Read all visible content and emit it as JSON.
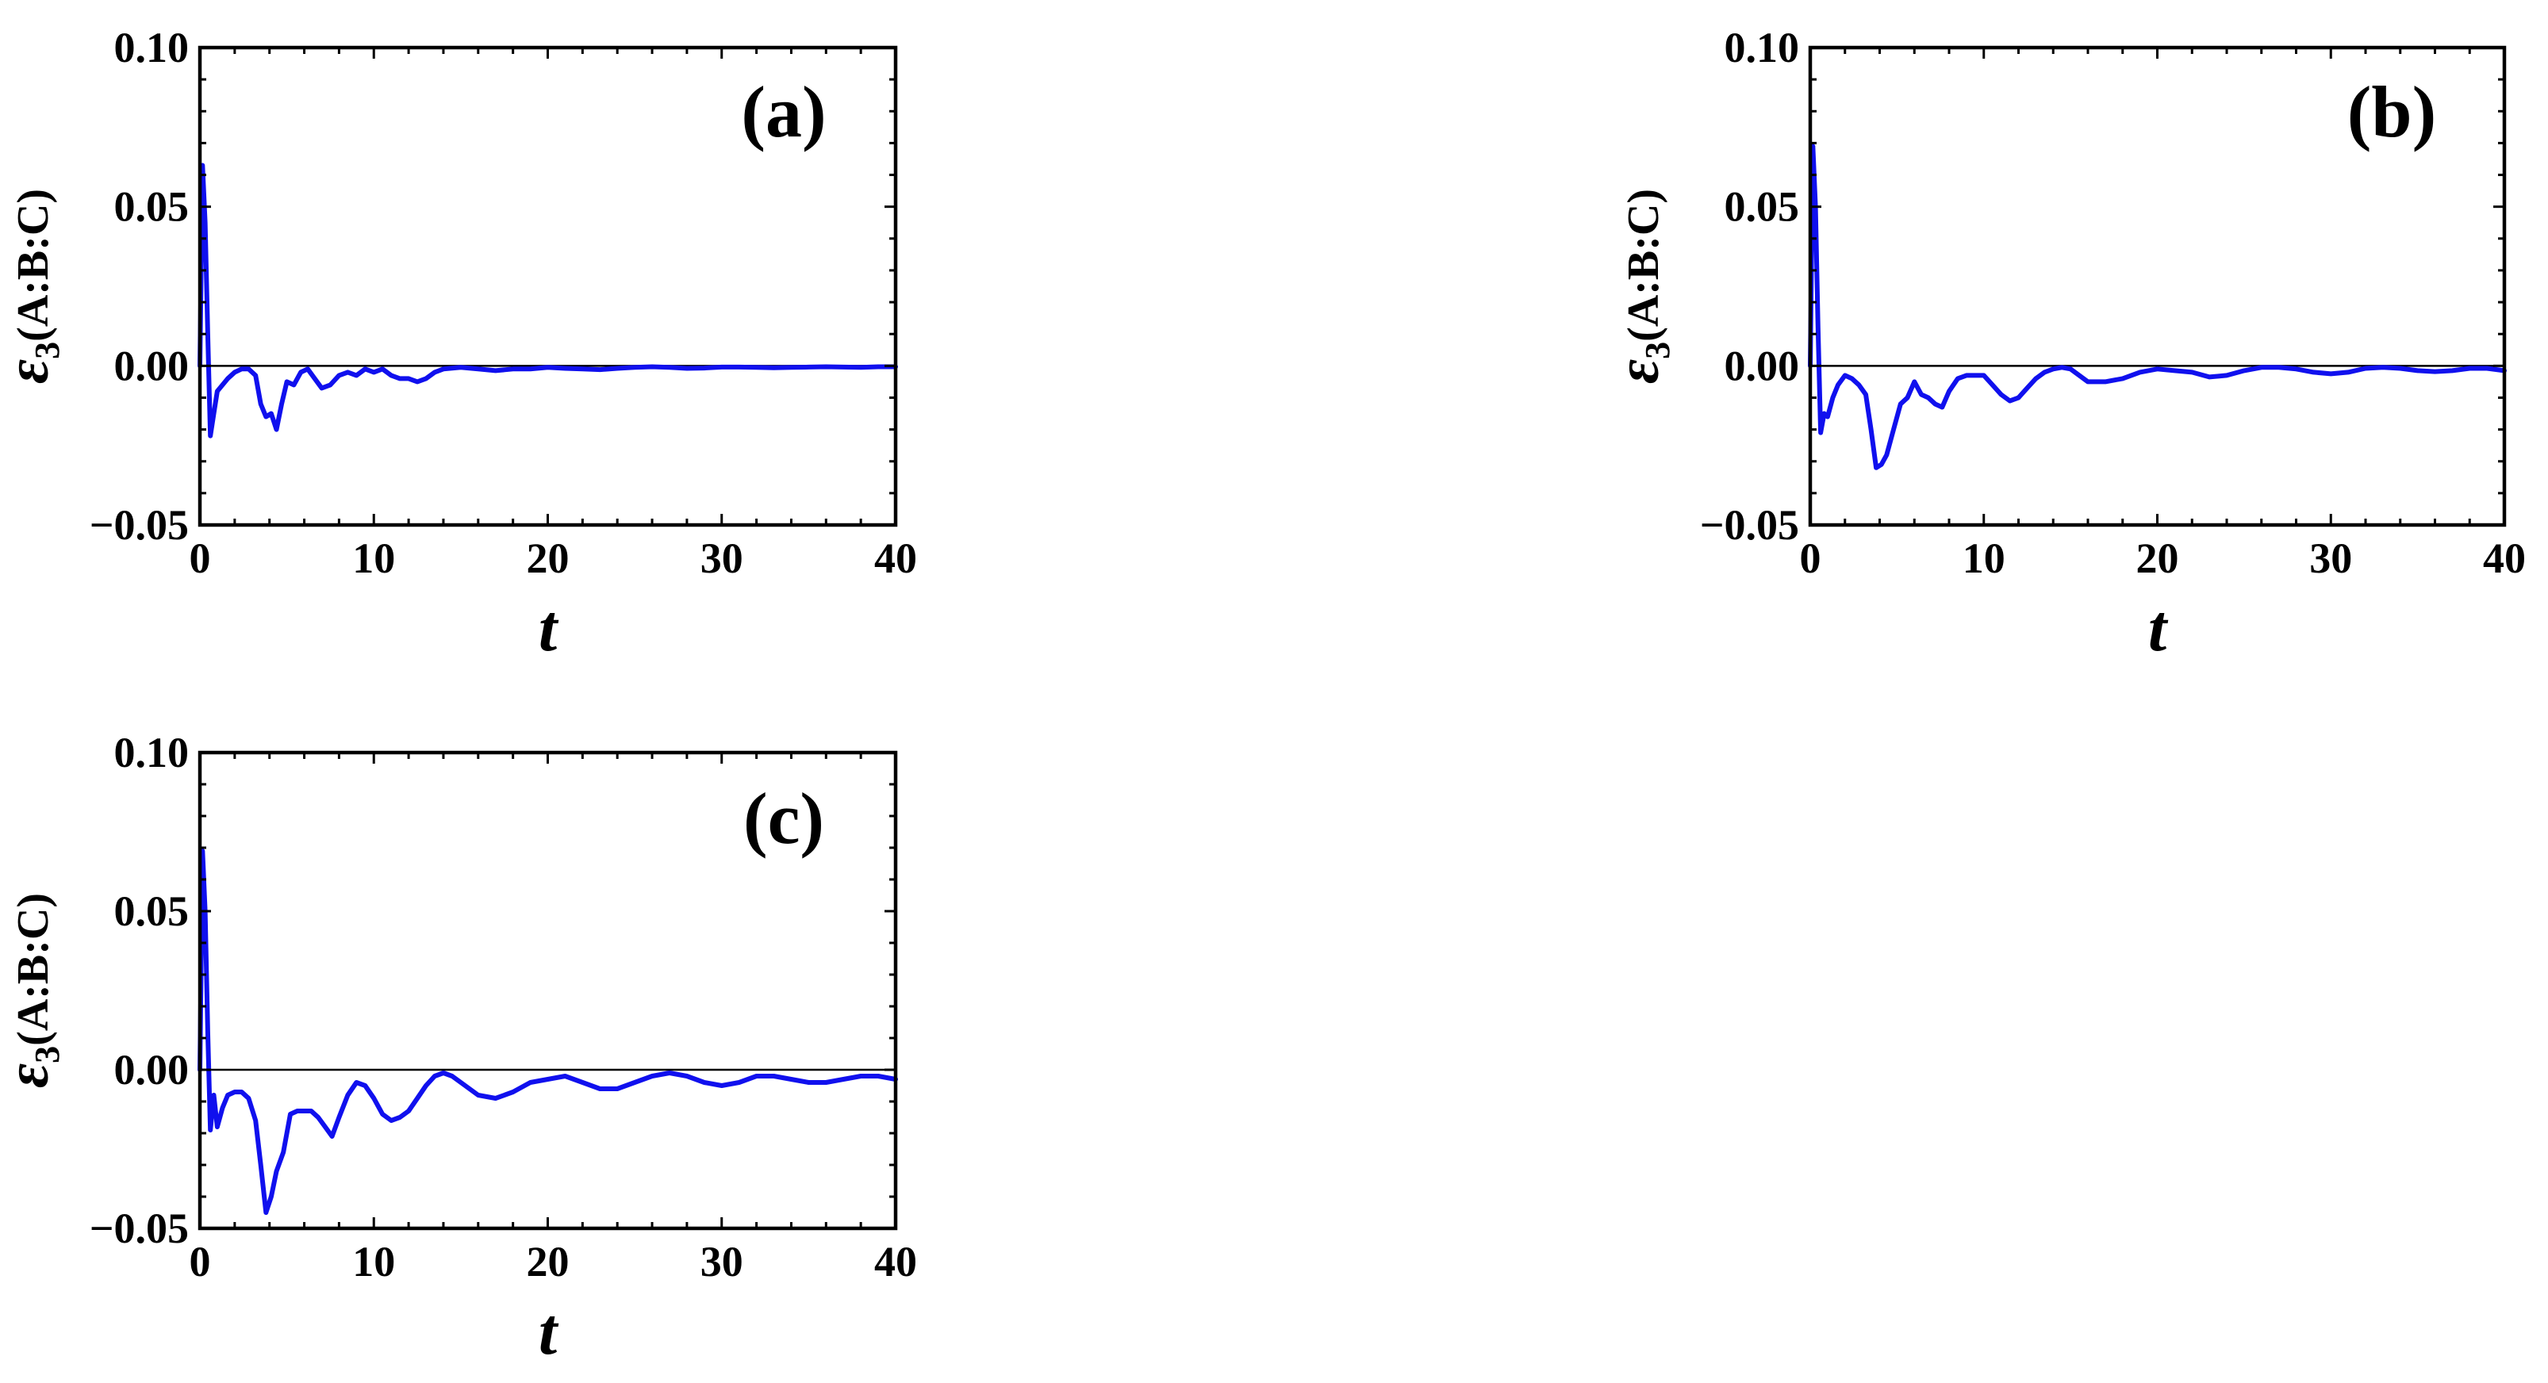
{
  "chart_data": [
    {
      "type": "line",
      "panel_label": "(a)",
      "xlabel": "t",
      "ylabel": {
        "symbol": "ε",
        "subscript": "3",
        "suffix": "(A:B:C)"
      },
      "xlim": [
        0,
        40
      ],
      "ylim": [
        -0.05,
        0.1
      ],
      "xticks": [
        0,
        10,
        20,
        30,
        40
      ],
      "yticks": [
        -0.05,
        0.0,
        0.05,
        0.1
      ],
      "xtick_labels": [
        "0",
        "10",
        "20",
        "30",
        "40"
      ],
      "ytick_labels": [
        "−0.05",
        "0.00",
        "0.05",
        "0.10"
      ],
      "zero_line": true,
      "grid": false,
      "color": "#1010ee",
      "series": [
        {
          "x": [
            0,
            0.15,
            0.3,
            0.45,
            0.6,
            0.8,
            1.0,
            1.3,
            1.6,
            2.0,
            2.4,
            2.8,
            3.2,
            3.5,
            3.8,
            4.1,
            4.4,
            4.7,
            5.0,
            5.4,
            5.8,
            6.2,
            6.6,
            7.0,
            7.5,
            8.0,
            8.5,
            9.0,
            9.5,
            10.0,
            10.5,
            11.0,
            11.5,
            12.0,
            12.5,
            13.0,
            13.5,
            14.0,
            15.0,
            16.0,
            17.0,
            18.0,
            19.0,
            20.0,
            21.0,
            22.0,
            23.0,
            24.0,
            25.0,
            26.0,
            27.0,
            28.0,
            29.0,
            30.0,
            31.0,
            32.0,
            33.0,
            34.0,
            35.0,
            36.0,
            37.0,
            38.0,
            39.0,
            40.0
          ],
          "y": [
            0.0,
            0.063,
            0.045,
            0.01,
            -0.022,
            -0.015,
            -0.008,
            -0.006,
            -0.004,
            -0.002,
            -0.001,
            -0.001,
            -0.003,
            -0.012,
            -0.016,
            -0.015,
            -0.02,
            -0.012,
            -0.005,
            -0.006,
            -0.002,
            -0.001,
            -0.004,
            -0.007,
            -0.006,
            -0.003,
            -0.002,
            -0.003,
            -0.001,
            -0.002,
            -0.001,
            -0.003,
            -0.004,
            -0.004,
            -0.005,
            -0.004,
            -0.002,
            -0.001,
            -0.0005,
            -0.001,
            -0.0015,
            -0.001,
            -0.001,
            -0.0005,
            -0.0008,
            -0.001,
            -0.0012,
            -0.0008,
            -0.0005,
            -0.0003,
            -0.0005,
            -0.0008,
            -0.0007,
            -0.0004,
            -0.0004,
            -0.0005,
            -0.0006,
            -0.0005,
            -0.0004,
            -0.0003,
            -0.0004,
            -0.0005,
            -0.0003,
            -0.0003
          ]
        }
      ]
    },
    {
      "type": "line",
      "panel_label": "(b)",
      "xlabel": "t",
      "ylabel": {
        "symbol": "ε",
        "subscript": "3",
        "suffix": "(A:B:C)"
      },
      "xlim": [
        0,
        40
      ],
      "ylim": [
        -0.05,
        0.1
      ],
      "xticks": [
        0,
        10,
        20,
        30,
        40
      ],
      "yticks": [
        -0.05,
        0.0,
        0.05,
        0.1
      ],
      "xtick_labels": [
        "0",
        "10",
        "20",
        "30",
        "40"
      ],
      "ytick_labels": [
        "−0.05",
        "0.00",
        "0.05",
        "0.10"
      ],
      "zero_line": true,
      "grid": false,
      "color": "#1010ee",
      "series": [
        {
          "x": [
            0,
            0.15,
            0.3,
            0.45,
            0.6,
            0.8,
            1.0,
            1.3,
            1.6,
            2.0,
            2.4,
            2.8,
            3.2,
            3.5,
            3.8,
            4.1,
            4.4,
            4.8,
            5.2,
            5.6,
            6.0,
            6.4,
            6.8,
            7.2,
            7.6,
            8.0,
            8.5,
            9.0,
            9.5,
            10.0,
            10.5,
            11.0,
            11.5,
            12.0,
            12.5,
            13.0,
            13.5,
            14.0,
            14.5,
            15.0,
            16.0,
            17.0,
            18.0,
            19.0,
            20.0,
            21.0,
            22.0,
            23.0,
            24.0,
            25.0,
            26.0,
            27.0,
            28.0,
            29.0,
            30.0,
            31.0,
            32.0,
            33.0,
            34.0,
            35.0,
            36.0,
            37.0,
            38.0,
            39.0,
            40.0
          ],
          "y": [
            0.0,
            0.069,
            0.05,
            0.012,
            -0.021,
            -0.015,
            -0.016,
            -0.01,
            -0.006,
            -0.003,
            -0.004,
            -0.006,
            -0.009,
            -0.02,
            -0.032,
            -0.031,
            -0.028,
            -0.02,
            -0.012,
            -0.01,
            -0.005,
            -0.009,
            -0.01,
            -0.012,
            -0.013,
            -0.008,
            -0.004,
            -0.003,
            -0.003,
            -0.003,
            -0.006,
            -0.009,
            -0.011,
            -0.01,
            -0.007,
            -0.004,
            -0.002,
            -0.001,
            -0.0005,
            -0.001,
            -0.005,
            -0.005,
            -0.004,
            -0.002,
            -0.001,
            -0.0015,
            -0.002,
            -0.0035,
            -0.003,
            -0.0015,
            -0.0005,
            -0.0005,
            -0.001,
            -0.002,
            -0.0025,
            -0.002,
            -0.0008,
            -0.0005,
            -0.0008,
            -0.0015,
            -0.0018,
            -0.0015,
            -0.0008,
            -0.0008,
            -0.0015
          ]
        }
      ]
    },
    {
      "type": "line",
      "panel_label": "(c)",
      "xlabel": "t",
      "ylabel": {
        "symbol": "ε",
        "subscript": "3",
        "suffix": "(A:B:C)"
      },
      "xlim": [
        0,
        40
      ],
      "ylim": [
        -0.05,
        0.1
      ],
      "xticks": [
        0,
        10,
        20,
        30,
        40
      ],
      "yticks": [
        -0.05,
        0.0,
        0.05,
        0.1
      ],
      "xtick_labels": [
        "0",
        "10",
        "20",
        "30",
        "40"
      ],
      "ytick_labels": [
        "−0.05",
        "0.00",
        "0.05",
        "0.10"
      ],
      "zero_line": true,
      "grid": false,
      "color": "#1010ee",
      "series": [
        {
          "x": [
            0,
            0.15,
            0.3,
            0.45,
            0.6,
            0.8,
            1.0,
            1.3,
            1.6,
            2.0,
            2.4,
            2.8,
            3.2,
            3.5,
            3.8,
            4.1,
            4.4,
            4.8,
            5.2,
            5.6,
            6.0,
            6.4,
            6.8,
            7.2,
            7.6,
            8.0,
            8.5,
            9.0,
            9.5,
            10.0,
            10.5,
            11.0,
            11.5,
            12.0,
            12.5,
            13.0,
            13.5,
            14.0,
            14.5,
            15.0,
            16.0,
            17.0,
            18.0,
            19.0,
            20.0,
            21.0,
            22.0,
            23.0,
            24.0,
            25.0,
            26.0,
            27.0,
            28.0,
            29.0,
            30.0,
            31.0,
            32.0,
            33.0,
            34.0,
            35.0,
            36.0,
            37.0,
            38.0,
            39.0,
            40.0
          ],
          "y": [
            0.0,
            0.069,
            0.05,
            0.012,
            -0.019,
            -0.008,
            -0.018,
            -0.012,
            -0.008,
            -0.007,
            -0.007,
            -0.009,
            -0.016,
            -0.03,
            -0.045,
            -0.04,
            -0.032,
            -0.026,
            -0.014,
            -0.013,
            -0.013,
            -0.013,
            -0.015,
            -0.018,
            -0.021,
            -0.015,
            -0.008,
            -0.004,
            -0.005,
            -0.009,
            -0.014,
            -0.016,
            -0.015,
            -0.013,
            -0.009,
            -0.005,
            -0.002,
            -0.001,
            -0.002,
            -0.004,
            -0.008,
            -0.009,
            -0.007,
            -0.004,
            -0.003,
            -0.002,
            -0.004,
            -0.006,
            -0.006,
            -0.004,
            -0.002,
            -0.001,
            -0.002,
            -0.004,
            -0.005,
            -0.004,
            -0.002,
            -0.002,
            -0.003,
            -0.004,
            -0.004,
            -0.003,
            -0.002,
            -0.002,
            -0.003
          ]
        }
      ]
    }
  ]
}
